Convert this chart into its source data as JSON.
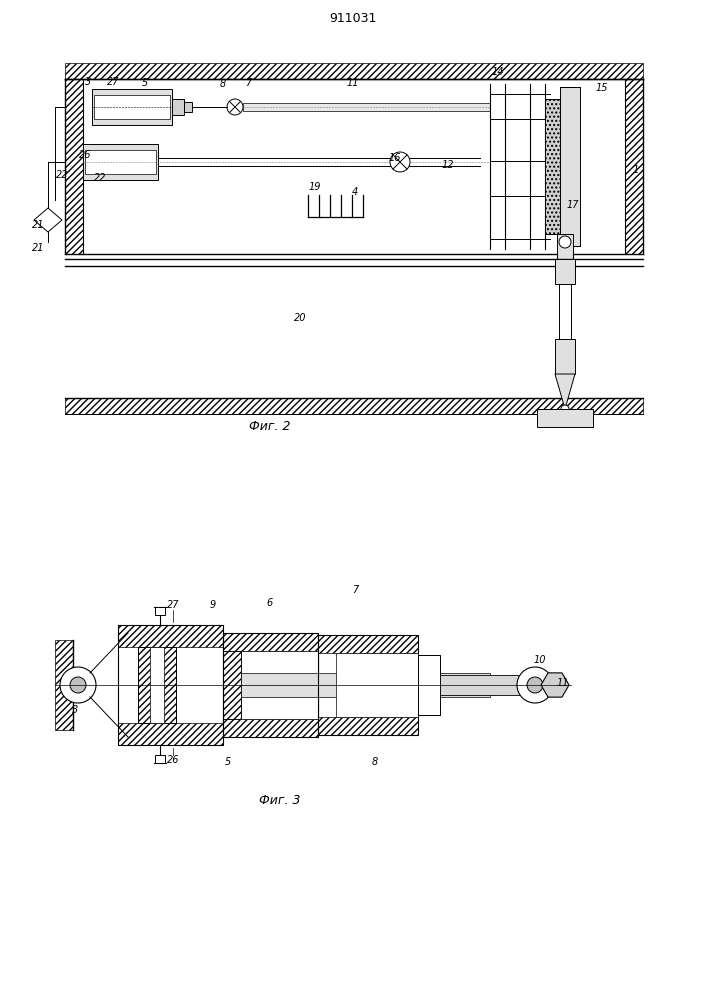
{
  "title": "911031",
  "fig2_caption": "Фиг. 2",
  "fig3_caption": "Фиг. 3",
  "bg_color": "#ffffff",
  "line_color": "#000000",
  "fig_width": 7.07,
  "fig_height": 10.0,
  "dpi": 100
}
